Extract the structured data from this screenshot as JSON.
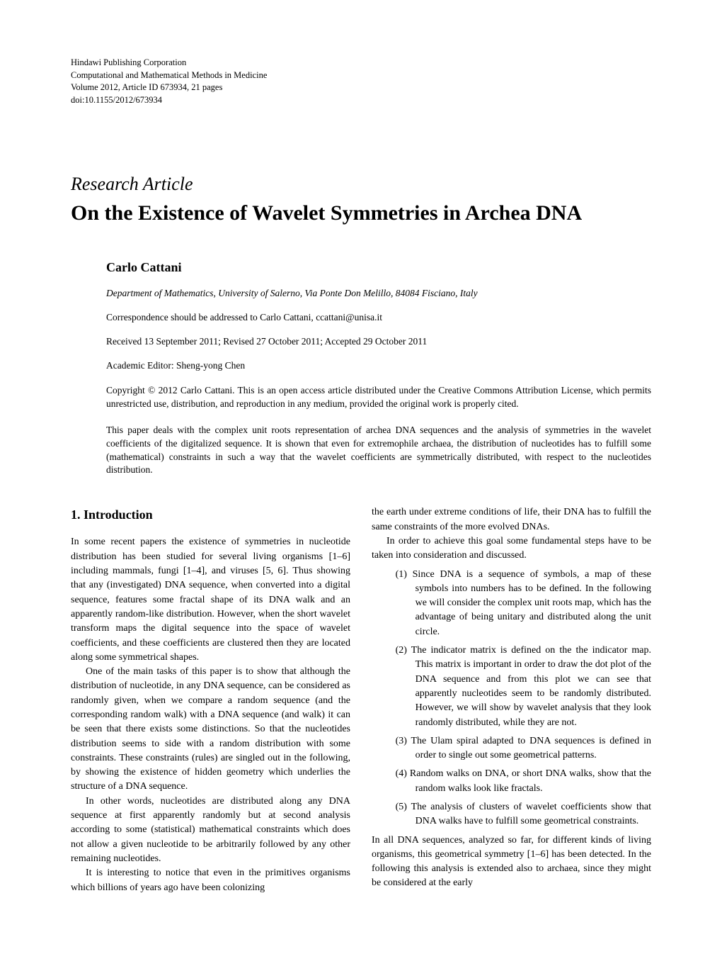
{
  "publisher": {
    "line1": "Hindawi Publishing Corporation",
    "line2": "Computational and Mathematical Methods in Medicine",
    "line3": "Volume 2012, Article ID 673934, 21 pages",
    "line4": "doi:10.1155/2012/673934"
  },
  "article": {
    "type": "Research Article",
    "title": "On the Existence of Wavelet Symmetries in Archea DNA",
    "author": "Carlo Cattani",
    "affiliation": "Department of Mathematics, University of Salerno, Via Ponte Don Melillo, 84084 Fisciano, Italy",
    "correspondence_prefix": "Correspondence should be addressed to Carlo Cattani, ",
    "correspondence_email": "ccattani@unisa.it",
    "dates": "Received 13 September 2011; Revised 27 October 2011; Accepted 29 October 2011",
    "editor": "Academic Editor: Sheng-yong Chen",
    "copyright": "Copyright © 2012 Carlo Cattani. This is an open access article distributed under the Creative Commons Attribution License, which permits unrestricted use, distribution, and reproduction in any medium, provided the original work is properly cited.",
    "abstract": "This paper deals with the complex unit roots representation of archea DNA sequences and the analysis of symmetries in the wavelet coefficients of the digitalized sequence. It is shown that even for extremophile archaea, the distribution of nucleotides has to fulfill some (mathematical) constraints in such a way that the wavelet coefficients are symmetrically distributed, with respect to the nucleotides distribution."
  },
  "section1": {
    "heading": "1. Introduction",
    "left_p1": "In some recent papers the existence of symmetries in nucleotide distribution has been studied for several living organisms [1–6] including mammals, fungi [1–4], and viruses [5, 6]. Thus showing that any (investigated) DNA sequence, when converted into a digital sequence, features some fractal shape of its DNA walk and an apparently random-like distribution. However, when the short wavelet transform maps the digital sequence into the space of wavelet coefficients, and these coefficients are clustered then they are located along some symmetrical shapes.",
    "left_p2": "One of the main tasks of this paper is to show that although the distribution of nucleotide, in any DNA sequence, can be considered as randomly given, when we compare a random sequence (and the corresponding random walk) with a DNA sequence (and walk) it can be seen that there exists some distinctions. So that the nucleotides distribution seems to side with a random distribution with some constraints. These constraints (rules) are singled out in the following, by showing the existence of hidden geometry which underlies the structure of a DNA sequence.",
    "left_p3": "In other words, nucleotides are distributed along any DNA sequence at first apparently randomly but at second analysis according to some (statistical) mathematical constraints which does not allow a given nucleotide to be arbitrarily followed by any other remaining nucleotides.",
    "left_p4": "It is interesting to notice that even in the primitives organisms which billions of years ago have been colonizing",
    "right_p1": "the earth under extreme conditions of life, their DNA has to fulfill the same constraints of the more evolved DNAs.",
    "right_p2": "In order to achieve this goal some fundamental steps have to be taken into consideration and discussed.",
    "list": {
      "item1": "(1) Since DNA is a sequence of symbols, a map of these symbols into numbers has to be defined. In the following we will consider the complex unit roots map, which has the advantage of being unitary and distributed along the unit circle.",
      "item2": "(2) The indicator matrix is defined on the the indicator map. This matrix is important in order to draw the dot plot of the DNA sequence and from this plot we can see that apparently nucleotides seem to be randomly distributed. However, we will show by wavelet analysis that they look randomly distributed, while they are not.",
      "item3": "(3) The Ulam spiral adapted to DNA sequences is defined in order to single out some geometrical patterns.",
      "item4": "(4) Random walks on DNA, or short DNA walks, show that the random walks look like fractals.",
      "item5": "(5) The analysis of clusters of wavelet coefficients show that DNA walks have to fulfill some geometrical constraints."
    },
    "right_p3": "In all DNA sequences, analyzed so far, for different kinds of living organisms, this geometrical symmetry [1–6] has been detected. In the following this analysis is extended also to archaea, since they might be considered at the early"
  }
}
